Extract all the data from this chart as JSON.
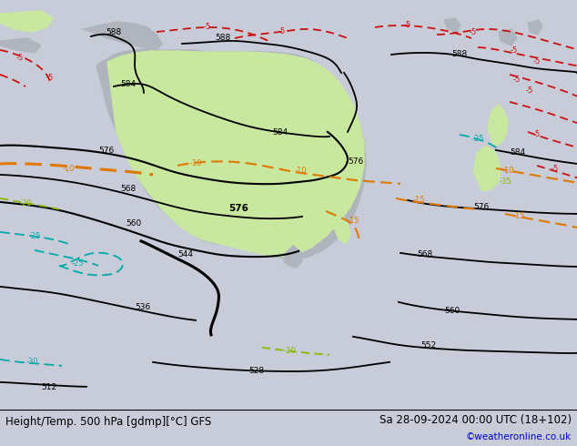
{
  "title_left": "Height/Temp. 500 hPa [gdmp][°C] GFS",
  "title_right": "Sa 28-09-2024 00:00 UTC (18+102)",
  "credit": "©weatheronline.co.uk",
  "ocean_color": "#c8ccd8",
  "land_color": "#b0b4bc",
  "highlight_color": "#c8e8a0",
  "bottom_bar_color": "#dcdcdc",
  "text_color": "#000000",
  "title_fontsize": 8.5,
  "credit_color": "#0000cc",
  "credit_fontsize": 7.5,
  "fig_width": 6.34,
  "fig_height": 4.9,
  "dpi": 100
}
